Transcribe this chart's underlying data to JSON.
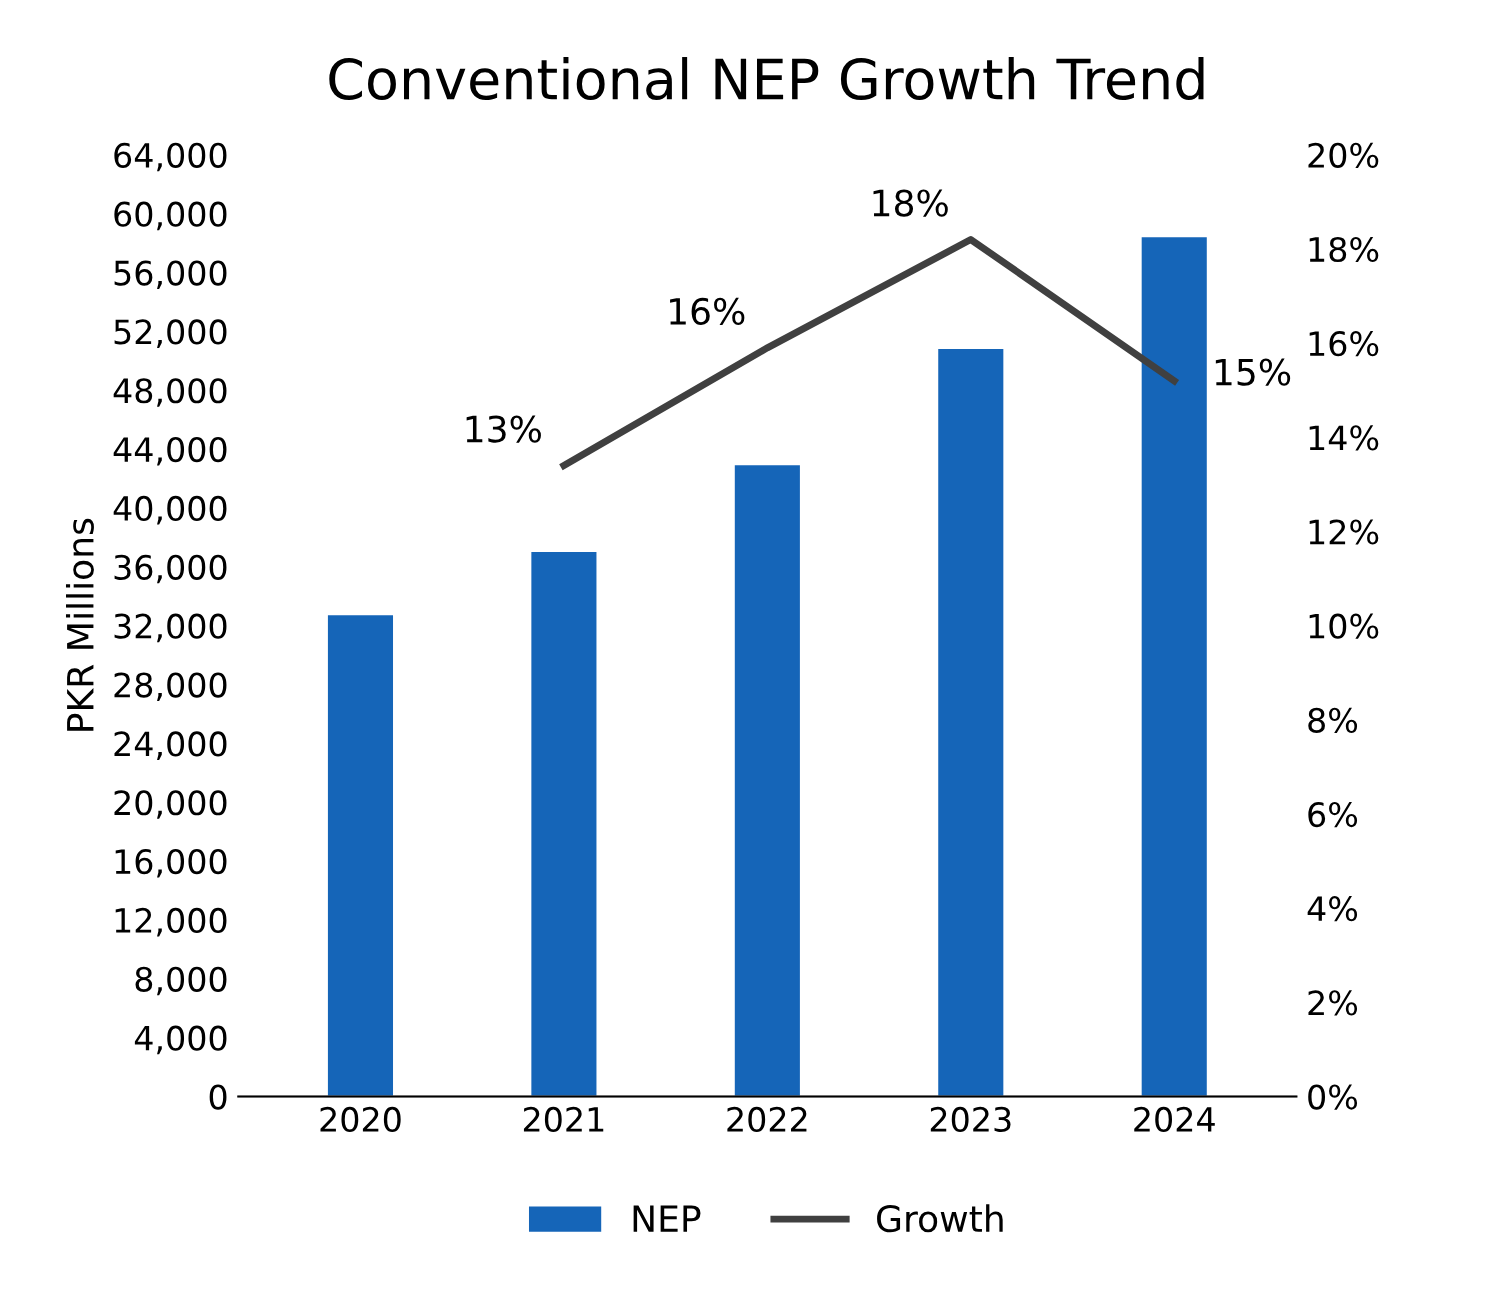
{
  "chart_data": {
    "type": "bar",
    "title": "Conventional NEP Growth Trend",
    "ylabel": "PKR Millions",
    "categories": [
      "2020",
      "2021",
      "2022",
      "2023",
      "2024"
    ],
    "series": [
      {
        "name": "NEP",
        "type": "bar",
        "color": "#1565b8",
        "values": [
          32700,
          37000,
          42900,
          50800,
          58400
        ]
      },
      {
        "name": "Growth",
        "type": "line",
        "axis": "y2",
        "color": "#404040",
        "values": [
          null,
          13.4,
          15.9,
          18.2,
          15.2
        ],
        "value_labels": [
          null,
          "13%",
          "16%",
          "18%",
          "15%"
        ]
      }
    ],
    "ylim": [
      0,
      64000
    ],
    "yticks": [
      {
        "value": 0,
        "label": "0"
      },
      {
        "value": 4000,
        "label": "4,000"
      },
      {
        "value": 8000,
        "label": "8,000"
      },
      {
        "value": 12000,
        "label": "12,000"
      },
      {
        "value": 16000,
        "label": "16,000"
      },
      {
        "value": 20000,
        "label": "20,000"
      },
      {
        "value": 24000,
        "label": "24,000"
      },
      {
        "value": 28000,
        "label": "28,000"
      },
      {
        "value": 32000,
        "label": "32,000"
      },
      {
        "value": 36000,
        "label": "36,000"
      },
      {
        "value": 40000,
        "label": "40,000"
      },
      {
        "value": 44000,
        "label": "44,000"
      },
      {
        "value": 48000,
        "label": "48,000"
      },
      {
        "value": 52000,
        "label": "52,000"
      },
      {
        "value": 56000,
        "label": "56,000"
      },
      {
        "value": 60000,
        "label": "60,000"
      },
      {
        "value": 64000,
        "label": "64,000"
      }
    ],
    "y2lim": [
      0,
      20
    ],
    "y2ticks": [
      {
        "value": 0,
        "label": "0%"
      },
      {
        "value": 2,
        "label": "2%"
      },
      {
        "value": 4,
        "label": "4%"
      },
      {
        "value": 6,
        "label": "6%"
      },
      {
        "value": 8,
        "label": "8%"
      },
      {
        "value": 10,
        "label": "10%"
      },
      {
        "value": 12,
        "label": "12%"
      },
      {
        "value": 14,
        "label": "14%"
      },
      {
        "value": 16,
        "label": "16%"
      },
      {
        "value": 18,
        "label": "18%"
      },
      {
        "value": 20,
        "label": "20%"
      }
    ],
    "grid": false,
    "legend": "bottom",
    "marker": "none",
    "line_style": "solid"
  }
}
